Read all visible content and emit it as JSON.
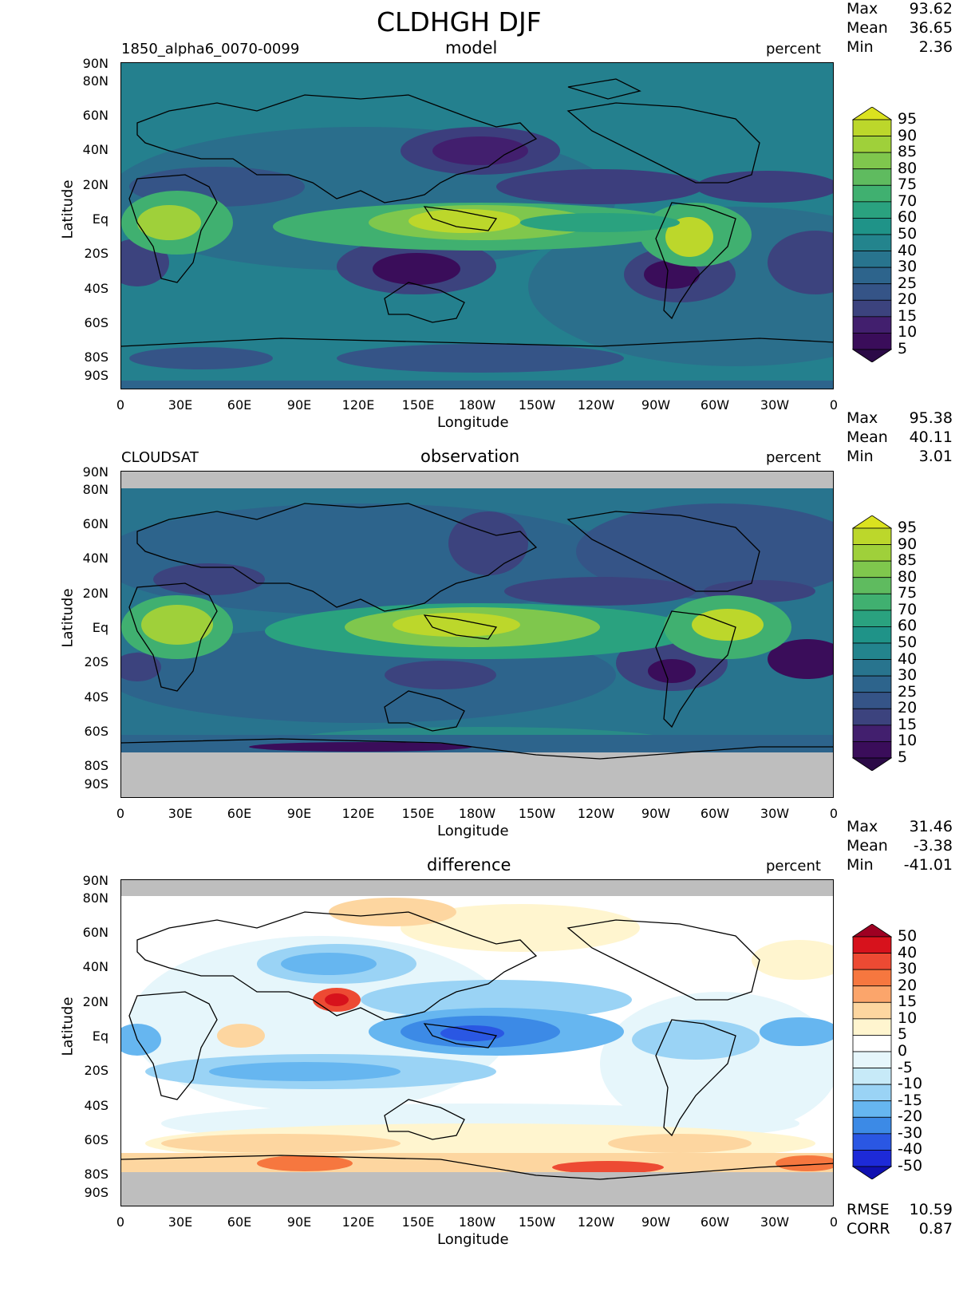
{
  "title": "CLDHGH DJF",
  "units": "percent",
  "axis": {
    "xlabel": "Longitude",
    "ylabel": "Latitude",
    "lon_ticks": [
      "0",
      "30E",
      "60E",
      "90E",
      "120E",
      "150E",
      "180W",
      "150W",
      "120W",
      "90W",
      "60W",
      "30W",
      "0"
    ],
    "lat_ticks": [
      "90N",
      "80N",
      "60N",
      "40N",
      "20N",
      "Eq",
      "20S",
      "40S",
      "60S",
      "80S",
      "90S"
    ]
  },
  "stat_labels": {
    "max": "Max",
    "mean": "Mean",
    "min": "Min",
    "rmse": "RMSE",
    "corr": "CORR"
  },
  "panels": [
    {
      "id": "model",
      "case": "1850_alpha6_0070-0099",
      "subtitle": "model",
      "max": "93.62",
      "mean": "36.65",
      "min": "2.36"
    },
    {
      "id": "observation",
      "case": "CLOUDSAT",
      "subtitle": "observation",
      "max": "95.38",
      "mean": "40.11",
      "min": "3.01"
    },
    {
      "id": "difference",
      "case": "",
      "subtitle": "difference",
      "max": "31.46",
      "mean": "-3.38",
      "min": "-41.01",
      "rmse": "10.59",
      "corr": "0.87"
    }
  ],
  "colorbars": {
    "field": {
      "labels": [
        "95",
        "90",
        "85",
        "80",
        "75",
        "70",
        "60",
        "50",
        "40",
        "30",
        "25",
        "20",
        "15",
        "10",
        "5"
      ],
      "colors": [
        "#dbe21f",
        "#bcd72b",
        "#9fd03a",
        "#7fc74d",
        "#5fbb5f",
        "#40b070",
        "#2aa27f",
        "#1f9388",
        "#23848d",
        "#28748e",
        "#2d648c",
        "#355487",
        "#3c437e",
        "#421f6e",
        "#3a0d5a",
        "#2b0a47"
      ]
    },
    "diff": {
      "labels": [
        "50",
        "40",
        "30",
        "20",
        "15",
        "10",
        "5",
        "0",
        "-5",
        "-10",
        "-15",
        "-20",
        "-30",
        "-40",
        "-50"
      ],
      "colors": [
        "#9e0022",
        "#d7121c",
        "#ed4a33",
        "#f6773f",
        "#fba56b",
        "#fdd6a0",
        "#fff5cf",
        "#ffffff",
        "#e6f6fb",
        "#c7eaf8",
        "#9ad3f5",
        "#66b6f0",
        "#3c8ae6",
        "#2a57e3",
        "#1d2ad8",
        "#1010b0"
      ]
    }
  }
}
